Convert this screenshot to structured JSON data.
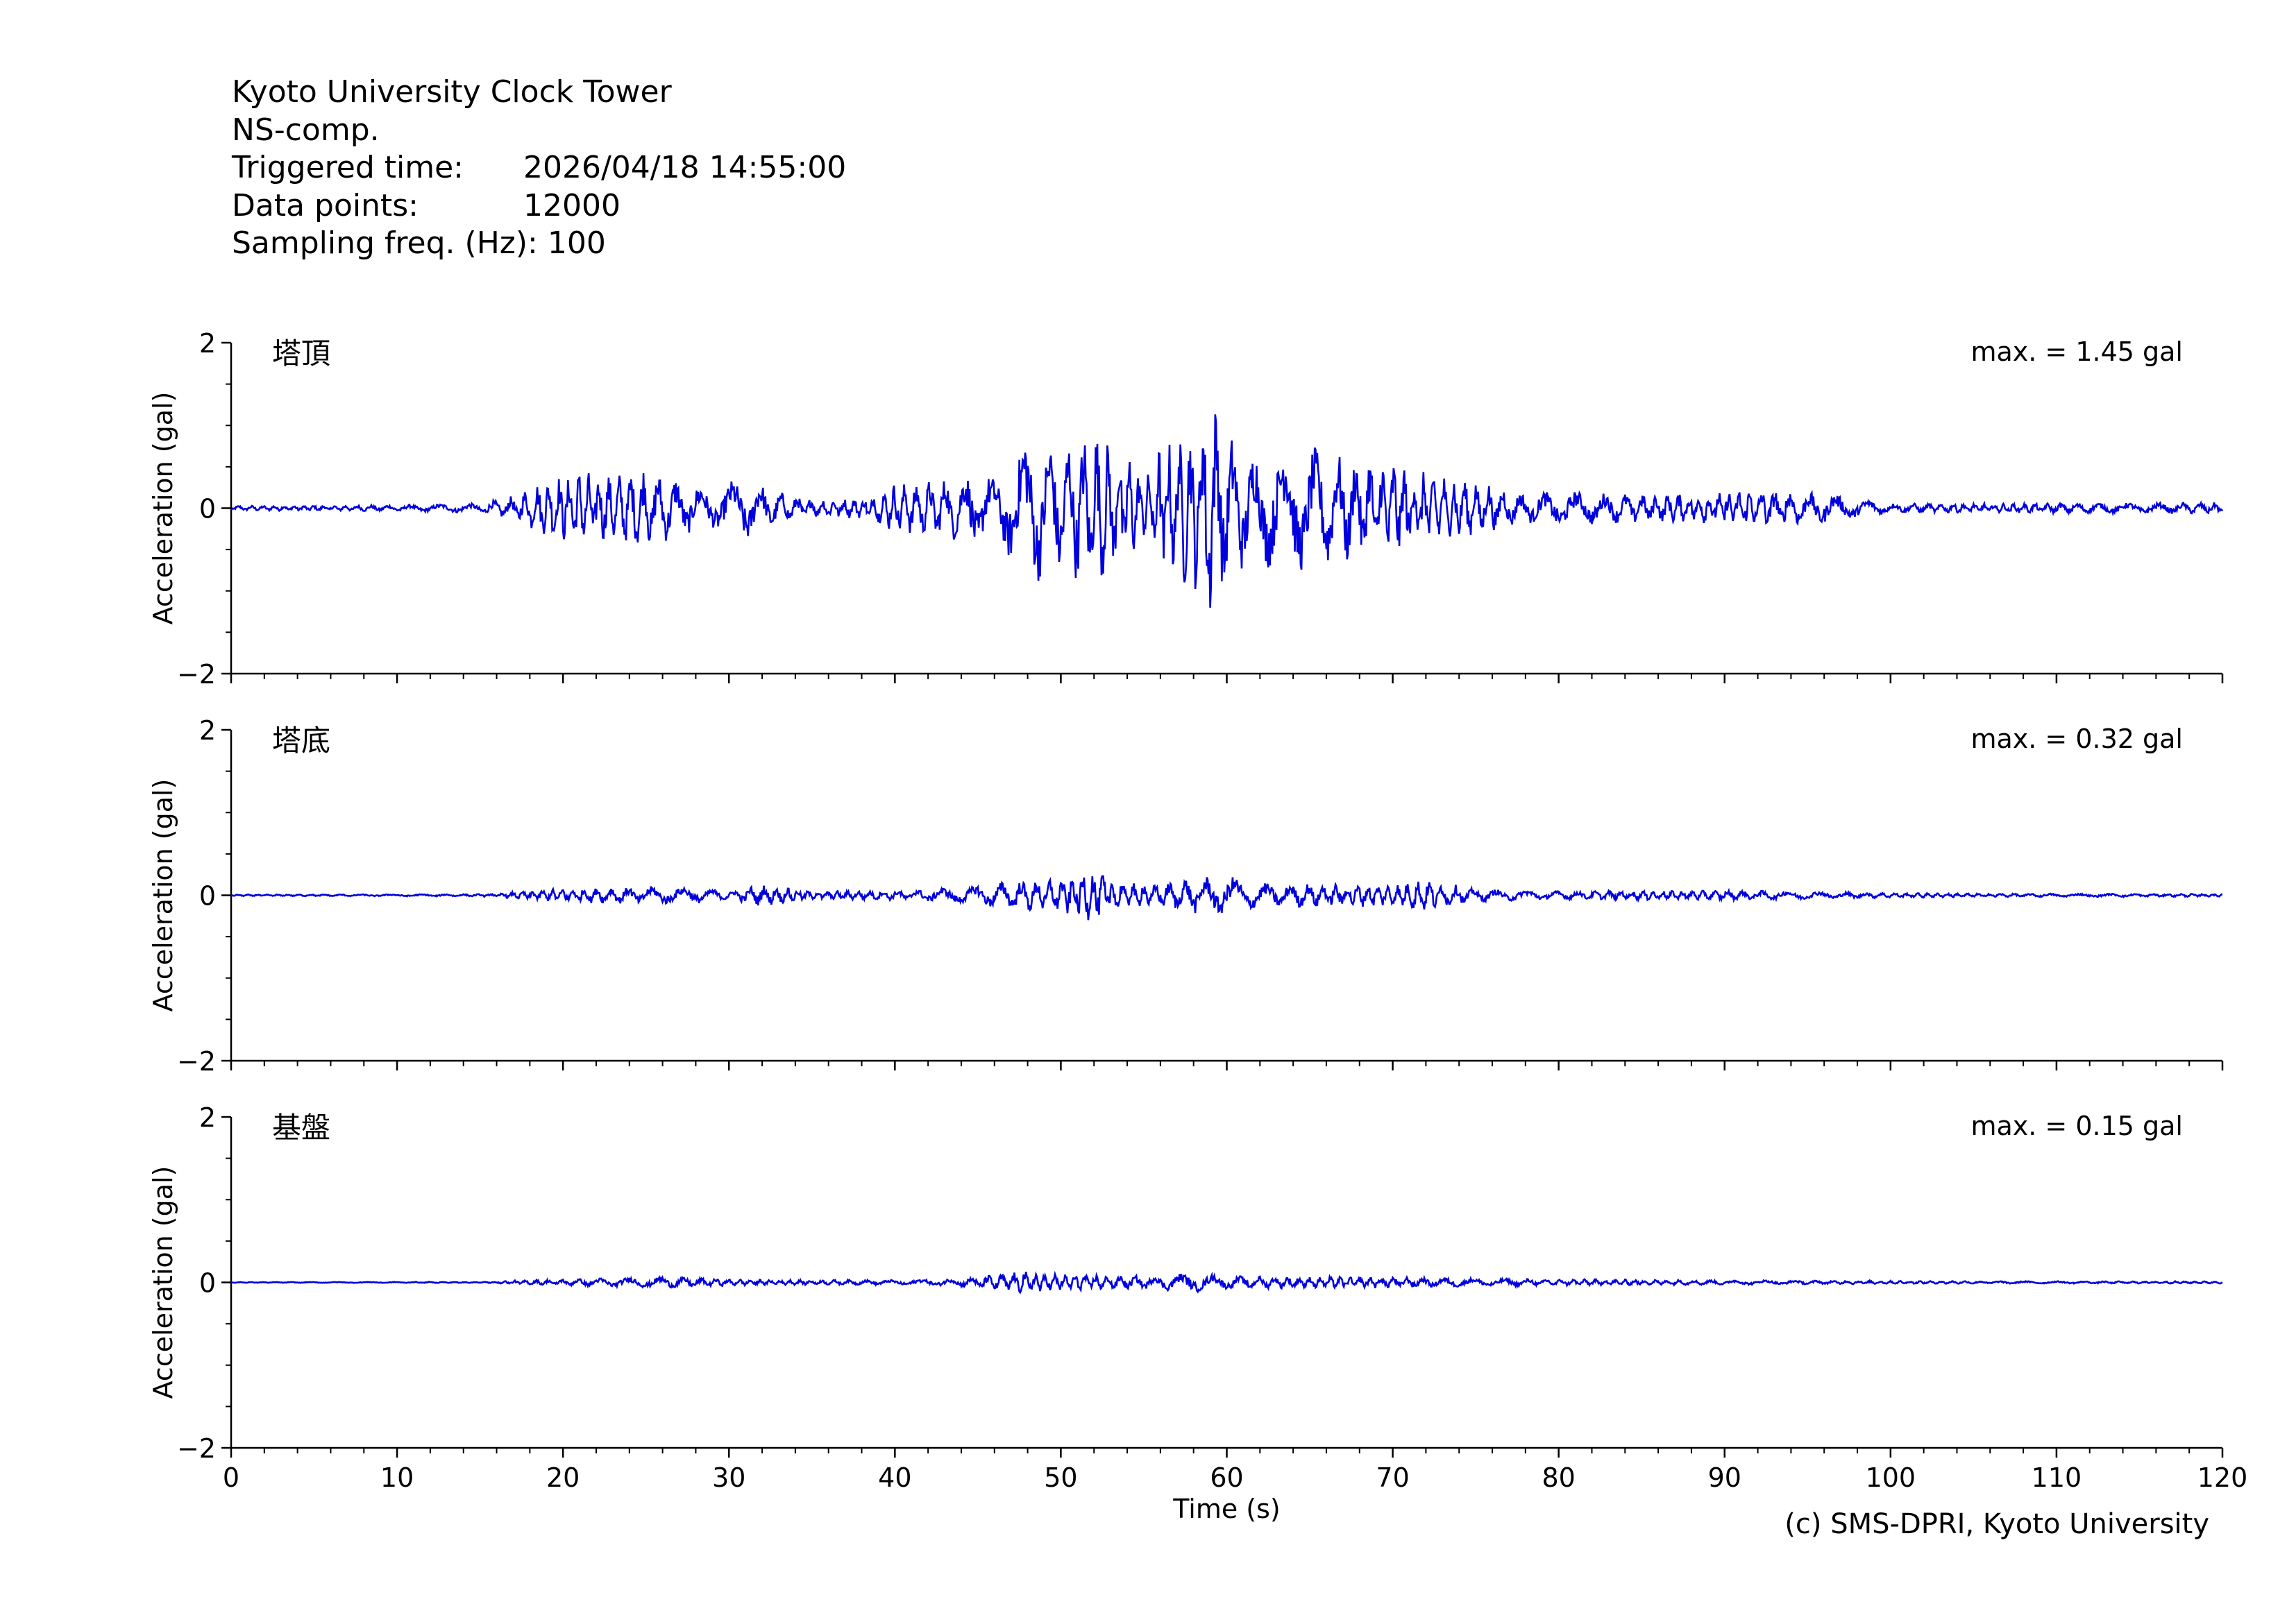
{
  "header": {
    "title": "Kyoto University Clock Tower",
    "component": "NS-comp.",
    "triggered_label": "Triggered time:",
    "triggered_value": "2026/04/18 14:55:00",
    "points_label": "Data points:",
    "points_value": "12000",
    "freq_label": "Sampling freq. (Hz):",
    "freq_value": "100"
  },
  "footer": {
    "credit": "(c) SMS-DPRI, Kyoto University"
  },
  "chart_data": {
    "type": "line",
    "xlabel": "Time (s)",
    "xlim": [
      0,
      120
    ],
    "xticks": [
      0,
      10,
      20,
      30,
      40,
      50,
      60,
      70,
      80,
      90,
      100,
      110,
      120
    ],
    "ylabel": "Acceleration (gal)",
    "ylim": [
      -2,
      2
    ],
    "yticks": [
      -2,
      0,
      2
    ],
    "yticklabels": [
      "−2",
      "0",
      "2"
    ],
    "line_color": "#0000dd",
    "grid": false,
    "panels": [
      {
        "name": "塔頂",
        "max_label": "max. = 1.45 gal",
        "max": 1.45,
        "envelope": {
          "t": [
            0,
            10,
            15,
            17,
            19,
            21,
            23,
            25,
            27,
            29,
            31,
            33,
            35,
            38,
            40,
            42,
            44,
            45,
            46,
            48,
            50,
            52,
            54,
            55,
            56,
            57,
            58,
            59,
            60,
            61,
            62,
            64,
            66,
            68,
            70,
            72,
            74,
            76,
            78,
            80,
            84,
            88,
            92,
            96,
            98,
            100,
            110,
            120
          ],
          "amp": [
            0.03,
            0.04,
            0.06,
            0.15,
            0.35,
            0.45,
            0.4,
            0.5,
            0.35,
            0.25,
            0.4,
            0.2,
            0.12,
            0.12,
            0.3,
            0.35,
            0.4,
            0.55,
            0.35,
            0.95,
            0.8,
            0.95,
            0.7,
            0.35,
            0.8,
            0.9,
            1.0,
            1.45,
            0.95,
            0.75,
            0.7,
            0.8,
            0.7,
            0.65,
            0.6,
            0.45,
            0.4,
            0.3,
            0.18,
            0.22,
            0.18,
            0.18,
            0.25,
            0.2,
            0.12,
            0.06,
            0.06,
            0.07
          ]
        }
      },
      {
        "name": "塔底",
        "max_label": "max. = 0.32 gal",
        "max": 0.32,
        "envelope": {
          "t": [
            0,
            15,
            17,
            20,
            25,
            28,
            30,
            32,
            35,
            40,
            44,
            46,
            48,
            50,
            52,
            54,
            56,
            58,
            60,
            62,
            65,
            70,
            72,
            75,
            80,
            85,
            90,
            95,
            100,
            110,
            120
          ],
          "amp": [
            0.01,
            0.015,
            0.04,
            0.09,
            0.11,
            0.1,
            0.05,
            0.14,
            0.05,
            0.06,
            0.1,
            0.15,
            0.2,
            0.22,
            0.32,
            0.18,
            0.15,
            0.22,
            0.25,
            0.15,
            0.15,
            0.13,
            0.2,
            0.08,
            0.05,
            0.06,
            0.06,
            0.05,
            0.03,
            0.02,
            0.02
          ]
        }
      },
      {
        "name": "基盤",
        "max_label": "max. = 0.15 gal",
        "max": 0.15,
        "envelope": {
          "t": [
            0,
            15,
            18,
            22,
            26,
            30,
            35,
            40,
            44,
            46,
            48,
            50,
            52,
            55,
            58,
            60,
            65,
            70,
            75,
            80,
            90,
            100,
            110,
            120
          ],
          "amp": [
            0.005,
            0.008,
            0.03,
            0.05,
            0.07,
            0.04,
            0.03,
            0.03,
            0.05,
            0.1,
            0.15,
            0.1,
            0.1,
            0.08,
            0.12,
            0.08,
            0.07,
            0.07,
            0.05,
            0.04,
            0.03,
            0.02,
            0.015,
            0.015
          ]
        }
      }
    ]
  }
}
